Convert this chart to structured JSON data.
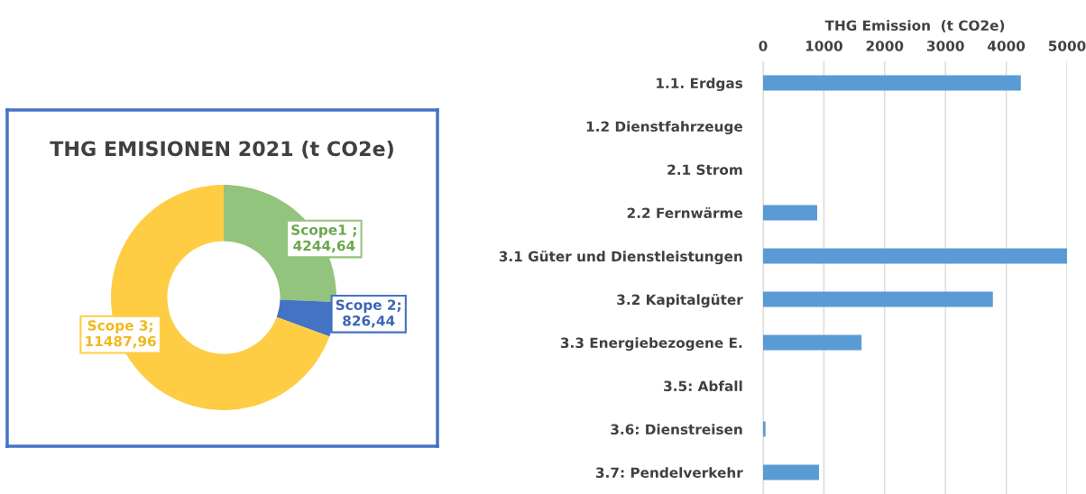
{
  "chart_data": [
    {
      "type": "donut",
      "title": "THG EMISIONEN 2021 (t CO2e)",
      "categories": [
        "Scope1",
        "Scope 2",
        "Scope 3"
      ],
      "values": [
        4244.64,
        826.44,
        11487.96
      ],
      "colors": [
        "#93c47d",
        "#4472c4",
        "#ffcd44"
      ],
      "value_labels": [
        "4244,64",
        "826,44",
        "11487,96"
      ],
      "annotations": [
        ";",
        ";",
        ";"
      ]
    },
    {
      "type": "bar",
      "orientation": "horizontal",
      "xlabel": "THG Emission  (t CO2e)",
      "categories": [
        "1.1. Erdgas",
        "1.2 Dienstfahrzeuge",
        "2.1 Strom",
        "2.2 Fernwärme",
        "3.1 Güter und Dienstleistungen",
        "3.2 Kapitalgüter",
        "3.3 Energiebezogene E.",
        "3.5: Abfall",
        "3.6: Dienstreisen",
        "3.7: Pendelverkehr"
      ],
      "values": [
        4240,
        0,
        0,
        890,
        5000,
        3780,
        1620,
        0,
        40,
        920
      ],
      "color": "#5b9bd5",
      "xlim": [
        0,
        5000
      ],
      "xticks": [
        0,
        1000,
        2000,
        3000,
        4000,
        5000
      ],
      "grid": "x"
    }
  ]
}
